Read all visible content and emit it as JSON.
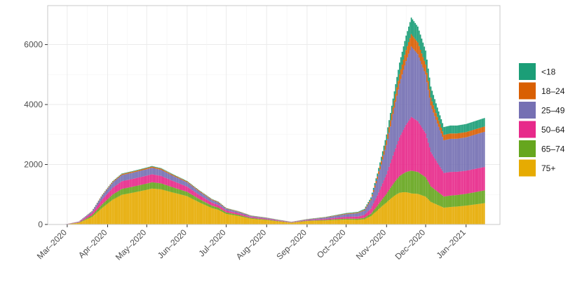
{
  "chart_data": {
    "type": "bar",
    "stacked": true,
    "title": "",
    "xlabel": "",
    "ylabel": "",
    "ylim": [
      0,
      7300
    ],
    "yticks": [
      0,
      2000,
      4000,
      6000
    ],
    "ytick_labels": [
      "0",
      "2000",
      "4000",
      "6000"
    ],
    "xtick_labels": [
      "Mar–2020",
      "Apr–2020",
      "May–2020",
      "Jun–2020",
      "Jul–2020",
      "Aug–2020",
      "Sep–2020",
      "Oct–2020",
      "Nov–2020",
      "Dec–2020",
      "Jan–2021"
    ],
    "x_start_date": "2020-02-25",
    "x_end_date": "2021-01-15",
    "grid": true,
    "legend_position": "right",
    "total_profile": [
      [
        "2020-02-25",
        0
      ],
      [
        "2020-03-01",
        20
      ],
      [
        "2020-03-10",
        100
      ],
      [
        "2020-03-20",
        450
      ],
      [
        "2020-03-28",
        1000
      ],
      [
        "2020-04-05",
        1450
      ],
      [
        "2020-04-12",
        1700
      ],
      [
        "2020-04-20",
        1780
      ],
      [
        "2020-05-01",
        1900
      ],
      [
        "2020-05-05",
        1950
      ],
      [
        "2020-05-12",
        1880
      ],
      [
        "2020-05-20",
        1700
      ],
      [
        "2020-06-01",
        1450
      ],
      [
        "2020-06-10",
        1150
      ],
      [
        "2020-06-20",
        850
      ],
      [
        "2020-06-25",
        760
      ],
      [
        "2020-07-01",
        550
      ],
      [
        "2020-07-10",
        450
      ],
      [
        "2020-07-20",
        300
      ],
      [
        "2020-08-01",
        230
      ],
      [
        "2020-08-10",
        160
      ],
      [
        "2020-08-20",
        90
      ],
      [
        "2020-09-01",
        180
      ],
      [
        "2020-09-15",
        250
      ],
      [
        "2020-10-01",
        380
      ],
      [
        "2020-10-10",
        420
      ],
      [
        "2020-10-15",
        520
      ],
      [
        "2020-10-20",
        900
      ],
      [
        "2020-10-25",
        1700
      ],
      [
        "2020-11-01",
        3000
      ],
      [
        "2020-11-06",
        4200
      ],
      [
        "2020-11-11",
        5400
      ],
      [
        "2020-11-16",
        6300
      ],
      [
        "2020-11-20",
        6900
      ],
      [
        "2020-11-25",
        6600
      ],
      [
        "2020-12-01",
        5800
      ],
      [
        "2020-12-05",
        4600
      ],
      [
        "2020-12-10",
        3900
      ],
      [
        "2020-12-15",
        3250
      ],
      [
        "2020-12-20",
        3300
      ],
      [
        "2020-12-25",
        3300
      ],
      [
        "2021-01-01",
        3350
      ],
      [
        "2021-01-08",
        3450
      ],
      [
        "2021-01-15",
        3550
      ]
    ],
    "series": [
      {
        "name": "<18",
        "color": "#1b9e77",
        "shares": [
          [
            "2020-02-25",
            0.01
          ],
          [
            "2020-06-01",
            0.01
          ],
          [
            "2020-09-01",
            0.03
          ],
          [
            "2020-11-20",
            0.08
          ],
          [
            "2021-01-15",
            0.08
          ]
        ]
      },
      {
        "name": "18–24",
        "color": "#d95f02",
        "shares": [
          [
            "2020-02-25",
            0.02
          ],
          [
            "2020-06-01",
            0.02
          ],
          [
            "2020-09-01",
            0.05
          ],
          [
            "2020-11-20",
            0.06
          ],
          [
            "2021-01-15",
            0.05
          ]
        ]
      },
      {
        "name": "25–49",
        "color": "#7570b3",
        "shares": [
          [
            "2020-02-25",
            0.14
          ],
          [
            "2020-06-01",
            0.1
          ],
          [
            "2020-09-01",
            0.12
          ],
          [
            "2020-10-25",
            0.35
          ],
          [
            "2020-11-20",
            0.34
          ],
          [
            "2021-01-15",
            0.33
          ]
        ]
      },
      {
        "name": "50–64",
        "color": "#e7298a",
        "shares": [
          [
            "2020-02-25",
            0.18
          ],
          [
            "2020-06-01",
            0.12
          ],
          [
            "2020-09-01",
            0.1
          ],
          [
            "2020-10-25",
            0.22
          ],
          [
            "2020-11-20",
            0.26
          ],
          [
            "2021-01-15",
            0.22
          ]
        ]
      },
      {
        "name": "65–74",
        "color": "#66a61e",
        "shares": [
          [
            "2020-02-25",
            0.13
          ],
          [
            "2020-06-01",
            0.1
          ],
          [
            "2020-09-01",
            0.08
          ],
          [
            "2020-11-20",
            0.11
          ],
          [
            "2021-01-15",
            0.12
          ]
        ]
      },
      {
        "name": "75+",
        "color": "#e6ab02",
        "shares": [
          [
            "2020-02-25",
            0.52
          ],
          [
            "2020-06-01",
            0.65
          ],
          [
            "2020-09-01",
            0.62
          ],
          [
            "2020-10-25",
            0.3
          ],
          [
            "2020-11-20",
            0.15
          ],
          [
            "2021-01-15",
            0.2
          ]
        ]
      }
    ]
  }
}
